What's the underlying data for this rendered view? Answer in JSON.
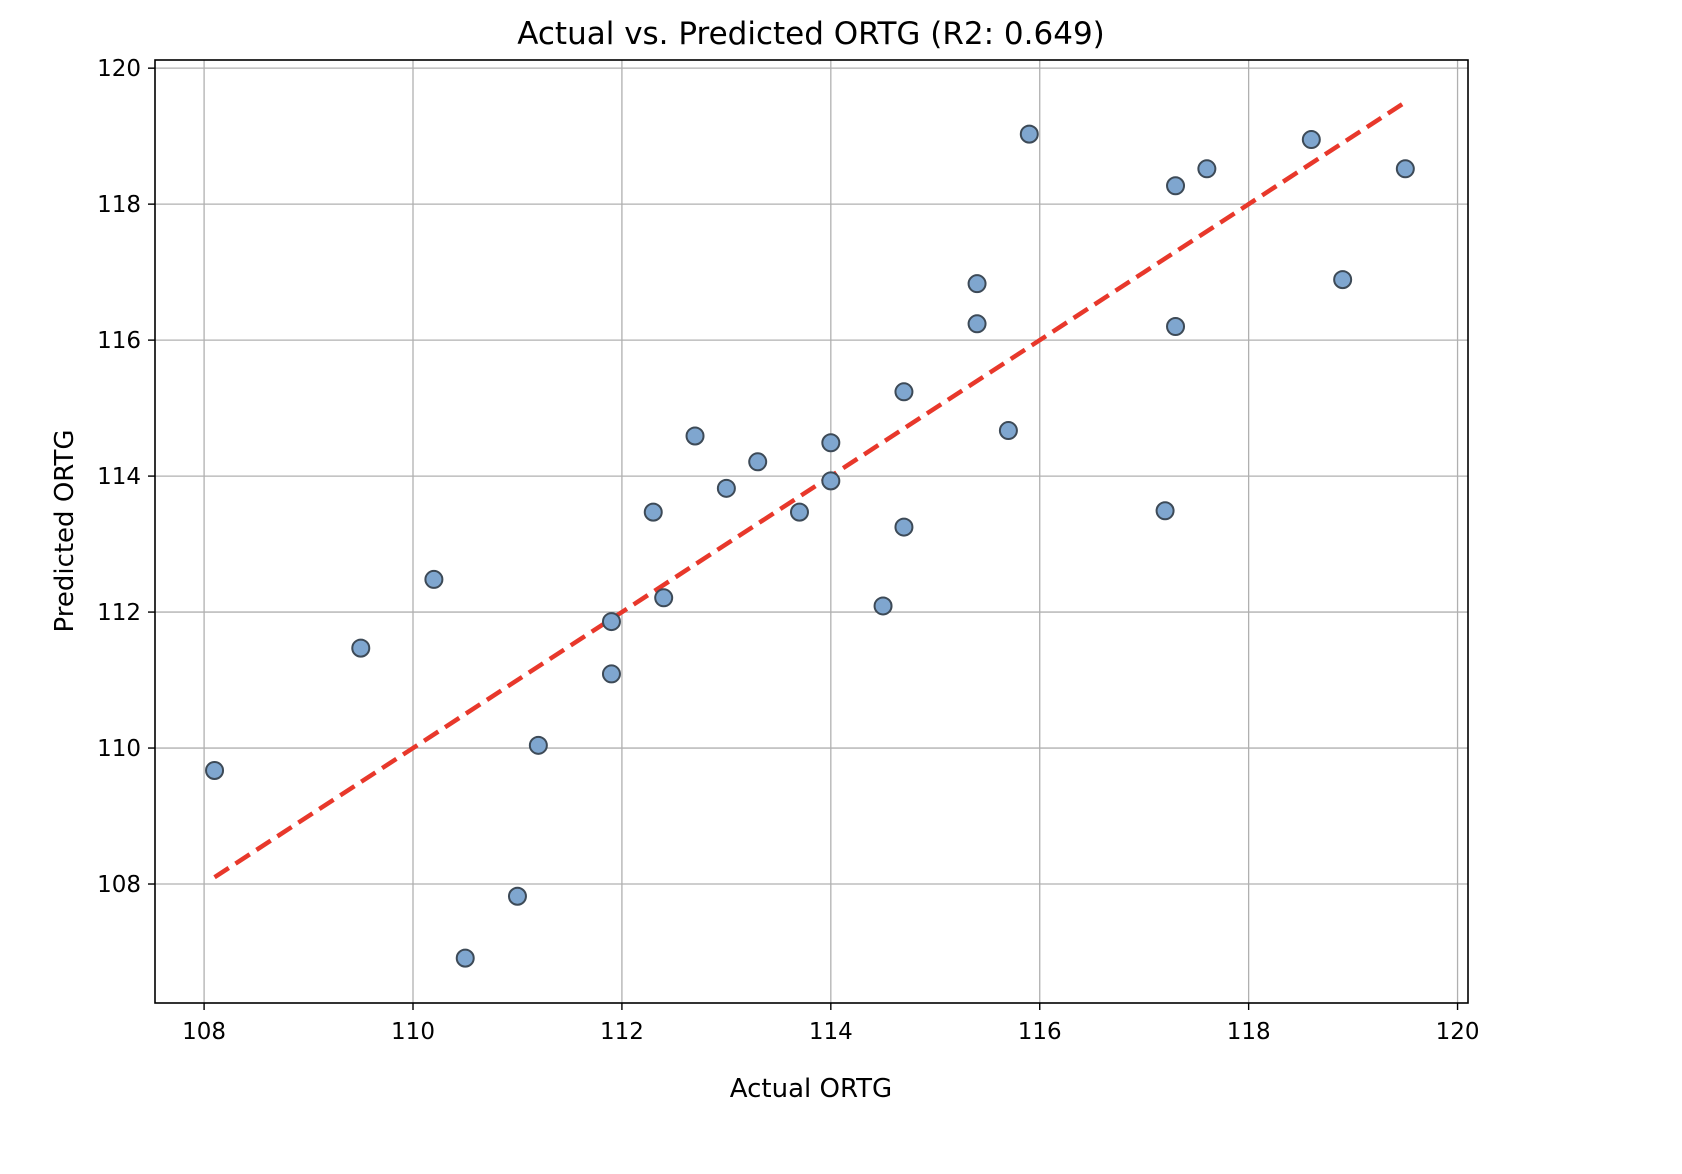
{
  "chart_data": {
    "type": "scatter",
    "title": "Actual vs. Predicted ORTG (R2: 0.649)",
    "xlabel": "Actual ORTG",
    "ylabel": "Predicted ORTG",
    "xlim": [
      107.53,
      120.1
    ],
    "ylim": [
      106.25,
      120.12
    ],
    "xticks": [
      108,
      110,
      112,
      114,
      116,
      118,
      120
    ],
    "yticks": [
      108,
      110,
      112,
      114,
      116,
      118,
      120
    ],
    "grid": true,
    "reference_line": {
      "from": [
        108.1,
        108.1
      ],
      "to": [
        119.5,
        119.5
      ],
      "style": "dashed",
      "color": "#e8382b"
    },
    "marker_color": "#7fa6cf",
    "marker_edge_color": "#3d4a57",
    "points": [
      {
        "x": 108.1,
        "y": 109.67
      },
      {
        "x": 109.5,
        "y": 111.47
      },
      {
        "x": 110.2,
        "y": 112.48
      },
      {
        "x": 110.5,
        "y": 106.91
      },
      {
        "x": 111.0,
        "y": 107.82
      },
      {
        "x": 111.2,
        "y": 110.04
      },
      {
        "x": 111.9,
        "y": 111.86
      },
      {
        "x": 111.9,
        "y": 111.09
      },
      {
        "x": 112.3,
        "y": 113.47
      },
      {
        "x": 112.4,
        "y": 112.21
      },
      {
        "x": 112.7,
        "y": 114.59
      },
      {
        "x": 113.0,
        "y": 113.82
      },
      {
        "x": 113.3,
        "y": 114.21
      },
      {
        "x": 113.7,
        "y": 113.47
      },
      {
        "x": 114.0,
        "y": 114.49
      },
      {
        "x": 114.0,
        "y": 113.93
      },
      {
        "x": 114.5,
        "y": 112.09
      },
      {
        "x": 114.7,
        "y": 115.24
      },
      {
        "x": 114.7,
        "y": 113.25
      },
      {
        "x": 115.4,
        "y": 116.83
      },
      {
        "x": 115.4,
        "y": 116.24
      },
      {
        "x": 115.7,
        "y": 114.67
      },
      {
        "x": 115.9,
        "y": 119.03
      },
      {
        "x": 117.2,
        "y": 113.49
      },
      {
        "x": 117.3,
        "y": 118.27
      },
      {
        "x": 117.3,
        "y": 116.2
      },
      {
        "x": 117.6,
        "y": 118.52
      },
      {
        "x": 118.6,
        "y": 118.95
      },
      {
        "x": 118.9,
        "y": 116.89
      },
      {
        "x": 119.5,
        "y": 118.52
      }
    ]
  }
}
